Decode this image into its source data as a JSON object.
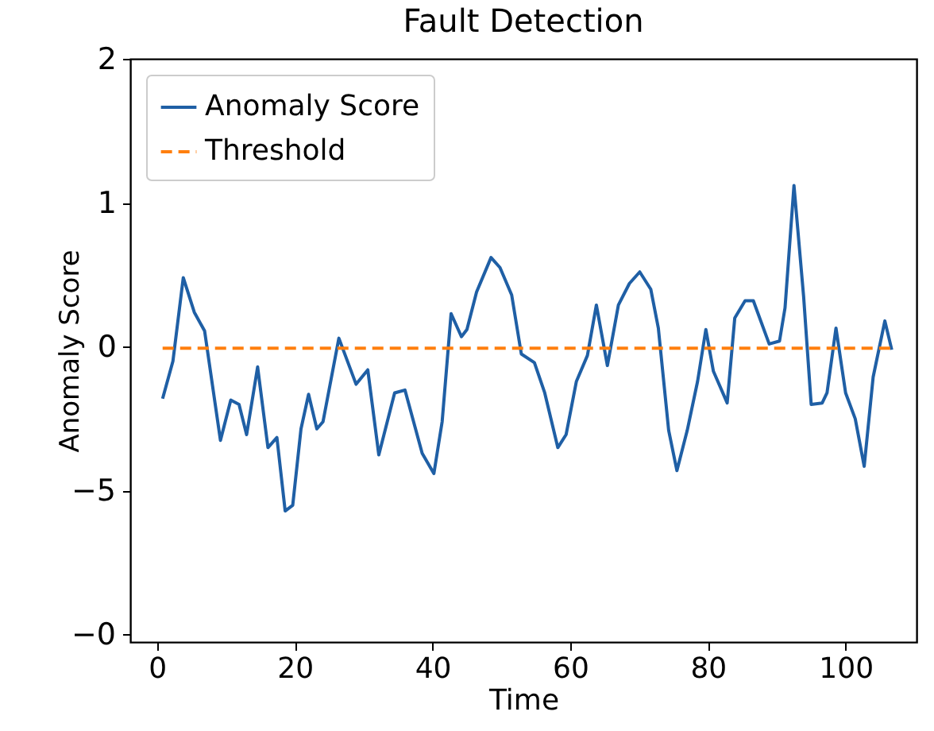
{
  "chart_data": {
    "type": "line",
    "title": "Fault Detection",
    "xlabel": "Time",
    "ylabel": "Anomaly Score",
    "xlim": [
      -3.9,
      110.3
    ],
    "xticks": [
      0,
      20,
      40,
      60,
      80,
      100
    ],
    "ylim": [
      -2.05,
      2
    ],
    "yticks": [
      2,
      1,
      0,
      {
        "value": -1,
        "label": null
      },
      {
        "value": -2,
        "label": null
      }
    ],
    "annotations": [
      "−5",
      "−0"
    ],
    "legend": "top left",
    "grid": false,
    "series": [
      {
        "name": "Anomaly Score",
        "color": "#1f5fa5",
        "line_style": "solid",
        "x": [
          0.8,
          2.3,
          3.8,
          5.4,
          6.9,
          9.2,
          10.7,
          11.9,
          13.0,
          14.6,
          16.1,
          17.4,
          18.6,
          19.7,
          20.9,
          22.0,
          23.2,
          24.1,
          26.4,
          28.9,
          30.6,
          32.2,
          34.5,
          36.0,
          38.5,
          40.2,
          41.4,
          42.7,
          44.2,
          45.0,
          46.4,
          48.5,
          49.8,
          51.5,
          52.9,
          54.8,
          56.3,
          58.2,
          59.4,
          60.9,
          62.5,
          63.8,
          65.4,
          67.0,
          68.6,
          70.1,
          71.7,
          72.8,
          74.3,
          75.5,
          77.0,
          78.5,
          79.7,
          80.8,
          82.8,
          83.9,
          85.4,
          86.6,
          88.9,
          90.4,
          91.2,
          92.5,
          93.9,
          95.0,
          96.6,
          97.3,
          98.6,
          100.0,
          101.4,
          102.7,
          104.0,
          105.7,
          106.7
        ],
        "values": [
          -0.36,
          -0.1,
          0.48,
          0.24,
          0.11,
          -0.65,
          -0.37,
          -0.4,
          -0.61,
          -0.14,
          -0.7,
          -0.63,
          -1.14,
          -1.1,
          -0.57,
          -0.33,
          -0.57,
          -0.52,
          0.06,
          -0.26,
          -0.16,
          -0.75,
          -0.32,
          -0.3,
          -0.74,
          -0.88,
          -0.52,
          0.23,
          0.07,
          0.12,
          0.38,
          0.62,
          0.55,
          0.36,
          -0.05,
          -0.11,
          -0.32,
          -0.7,
          -0.61,
          -0.24,
          -0.06,
          0.29,
          -0.13,
          0.29,
          0.44,
          0.52,
          0.4,
          0.13,
          -0.58,
          -0.86,
          -0.58,
          -0.24,
          0.12,
          -0.17,
          -0.39,
          0.2,
          0.32,
          0.32,
          0.02,
          0.04,
          0.27,
          1.12,
          0.35,
          -0.4,
          -0.39,
          -0.32,
          0.13,
          -0.32,
          -0.5,
          -0.83,
          -0.21,
          0.18,
          -0.02
        ]
      },
      {
        "name": "Threshold",
        "color": "#ff7f0e",
        "line_style": "dashed",
        "x": [
          0.8,
          106.7
        ],
        "values": [
          -0.01,
          -0.01
        ]
      }
    ]
  }
}
